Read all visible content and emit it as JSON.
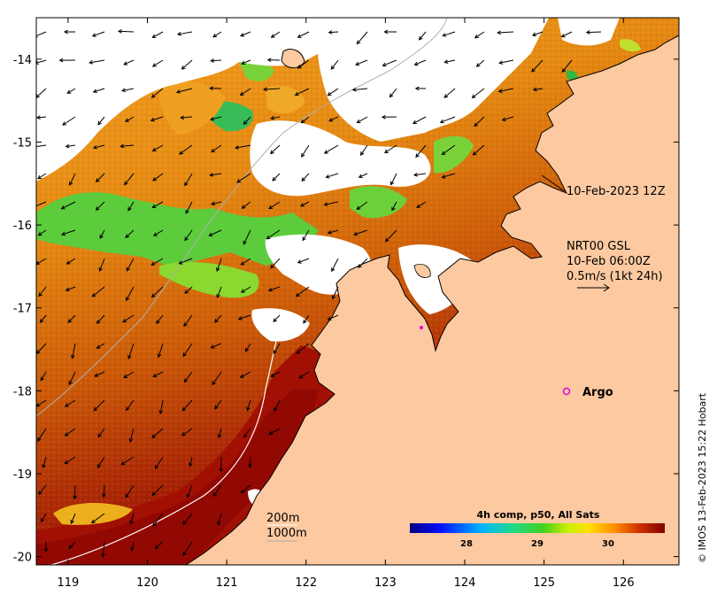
{
  "map": {
    "x_ticks": [
      "119",
      "120",
      "121",
      "122",
      "123",
      "124",
      "125",
      "126"
    ],
    "y_ticks": [
      "-14",
      "-15",
      "-16",
      "-17",
      "-18",
      "-19",
      "-20"
    ],
    "lon_range": [
      118.6,
      126.7
    ],
    "lat_range": [
      -20.1,
      -13.5
    ],
    "timestamp_label": "10-Feb-2023 12Z",
    "current_source": "NRT00 GSL",
    "current_time": "10-Feb 06:00Z",
    "current_scale": "0.5m/s (1kt 24h)",
    "argo_label": "Argo",
    "isobath_200": "200m",
    "isobath_1000": "1000m",
    "credit": "© IMOS 13-Feb-2023 15:22 Hobart",
    "colors": {
      "land": "#fdc9a0",
      "cloud": "#ffffff",
      "warm": "#9a0c02",
      "mid": "#e07a10",
      "cool": "#3cc43c",
      "argo": "#e000e0"
    }
  },
  "colorbar": {
    "title": "4h comp, p50, All Sats",
    "ticks": [
      "28",
      "29",
      "30"
    ],
    "tick_values": [
      28,
      29,
      30
    ],
    "range": [
      27.2,
      30.8
    ]
  }
}
